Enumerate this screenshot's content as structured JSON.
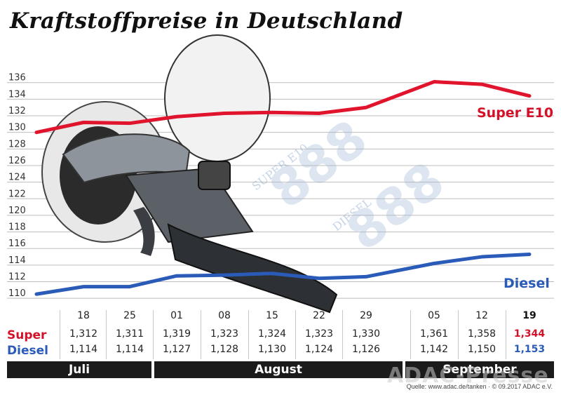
{
  "title": "Kraftstoffpreise in Deutschland",
  "chart_data": {
    "type": "line",
    "title": "Kraftstoffpreise in Deutschland",
    "categories": [
      "18",
      "25",
      "01",
      "08",
      "15",
      "22",
      "29",
      "05",
      "12",
      "19"
    ],
    "series": [
      {
        "name": "Super E10",
        "values": [
          131.2,
          131.1,
          131.9,
          132.3,
          132.4,
          132.3,
          133.0,
          136.1,
          135.8,
          134.4
        ],
        "color": "#e0142c"
      },
      {
        "name": "Diesel",
        "values": [
          111.4,
          111.4,
          112.7,
          112.8,
          113.0,
          112.4,
          112.6,
          114.2,
          115.0,
          115.3
        ],
        "color": "#2a5bb8"
      }
    ],
    "yticks": [
      110,
      112,
      114,
      116,
      118,
      120,
      122,
      124,
      126,
      128,
      130,
      132,
      134,
      136
    ],
    "ylim": [
      109,
      137.5
    ],
    "grid": true
  },
  "labels": {
    "super_series": "Super E10",
    "diesel_series": "Diesel"
  },
  "table": {
    "dates": [
      "18",
      "25",
      "01",
      "08",
      "15",
      "22",
      "29",
      "05",
      "12",
      "19"
    ],
    "super_label": "Super",
    "diesel_label": "Diesel",
    "super_values": [
      "1,312",
      "1,311",
      "1,319",
      "1,323",
      "1,324",
      "1,323",
      "1,330",
      "1,361",
      "1,358",
      "1,344"
    ],
    "diesel_values": [
      "1,114",
      "1,114",
      "1,127",
      "1,128",
      "1,130",
      "1,124",
      "1,126",
      "1,142",
      "1,150",
      "1,153"
    ]
  },
  "months": [
    "Juli",
    "August",
    "September"
  ],
  "source": "Quelle: www.adac.de/tanken · © 09.2017 ADAC e.V.",
  "watermark": "ADAC-Presse",
  "decor": {
    "super_text": "SUPER E10",
    "diesel_text": "DIESEL",
    "digits": "888"
  }
}
